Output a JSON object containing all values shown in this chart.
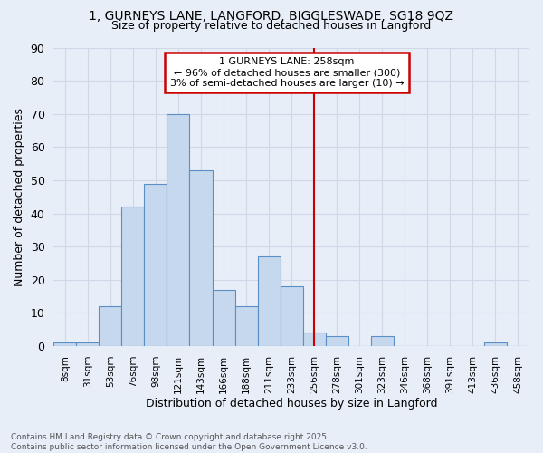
{
  "title_line1": "1, GURNEYS LANE, LANGFORD, BIGGLESWADE, SG18 9QZ",
  "title_line2": "Size of property relative to detached houses in Langford",
  "xlabel": "Distribution of detached houses by size in Langford",
  "ylabel": "Number of detached properties",
  "bin_labels": [
    "8sqm",
    "31sqm",
    "53sqm",
    "76sqm",
    "98sqm",
    "121sqm",
    "143sqm",
    "166sqm",
    "188sqm",
    "211sqm",
    "233sqm",
    "256sqm",
    "278sqm",
    "301sqm",
    "323sqm",
    "346sqm",
    "368sqm",
    "391sqm",
    "413sqm",
    "436sqm",
    "458sqm"
  ],
  "bar_heights": [
    1,
    1,
    12,
    42,
    49,
    70,
    53,
    17,
    12,
    27,
    18,
    4,
    3,
    0,
    3,
    0,
    0,
    0,
    0,
    1,
    0
  ],
  "bar_color": "#c5d8ed",
  "bar_edge_color": "#5b8ec4",
  "background_color": "#e8eef8",
  "grid_color": "#d0d8e8",
  "vline_x_label": "256sqm",
  "vline_color": "#cc0000",
  "annotation_text": "1 GURNEYS LANE: 258sqm\n← 96% of detached houses are smaller (300)\n3% of semi-detached houses are larger (10) →",
  "annotation_box_color": "#cc0000",
  "annotation_bg": "#ffffff",
  "footer_text": "Contains HM Land Registry data © Crown copyright and database right 2025.\nContains public sector information licensed under the Open Government Licence v3.0.",
  "ylim": [
    0,
    90
  ],
  "yticks": [
    0,
    10,
    20,
    30,
    40,
    50,
    60,
    70,
    80,
    90
  ]
}
